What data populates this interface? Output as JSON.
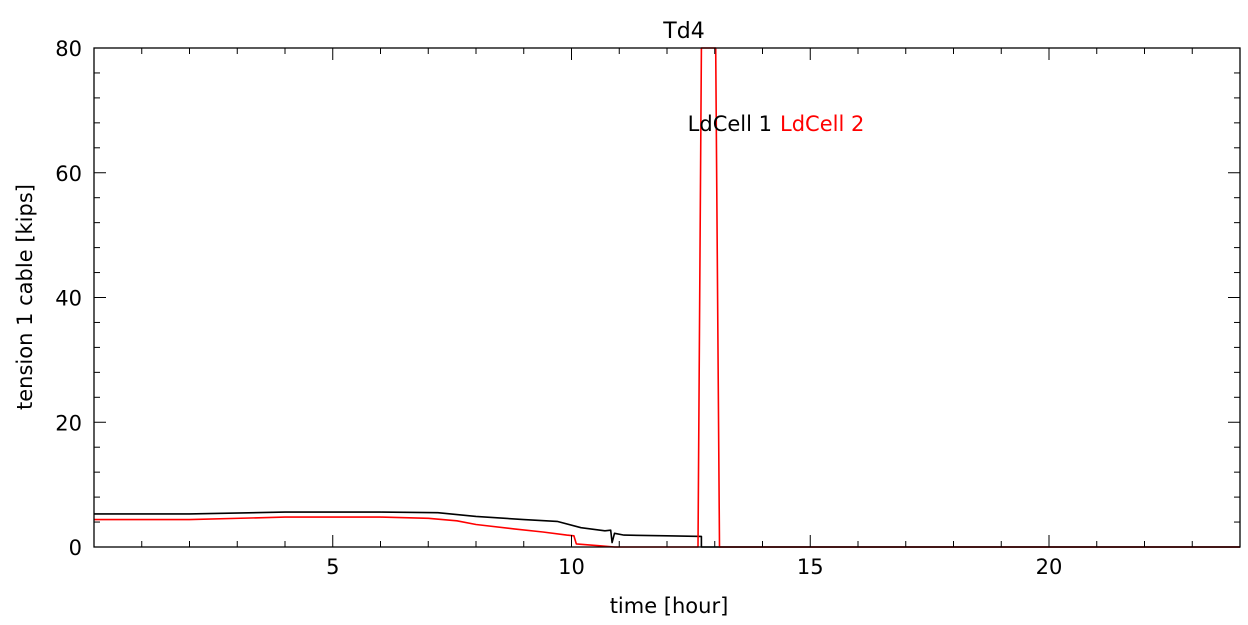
{
  "chart_data": {
    "type": "line",
    "title": "Td4",
    "xlabel": "time [hour]",
    "ylabel": "tension 1 cable [kips]",
    "xlim": [
      0,
      24
    ],
    "ylim": [
      0,
      80
    ],
    "xticks": [
      5,
      10,
      15,
      20
    ],
    "yticks": [
      0,
      20,
      40,
      60,
      80
    ],
    "grid": false,
    "legend": {
      "placement": "top-center"
    },
    "series": [
      {
        "name": "LdCell 1",
        "color": "#000000",
        "points": [
          [
            0,
            5.3
          ],
          [
            2,
            5.3
          ],
          [
            4,
            5.6
          ],
          [
            5,
            5.6
          ],
          [
            6,
            5.6
          ],
          [
            7.2,
            5.5
          ],
          [
            8,
            4.9
          ],
          [
            9,
            4.4
          ],
          [
            9.7,
            4.1
          ],
          [
            10.2,
            3.1
          ],
          [
            10.7,
            2.6
          ],
          [
            10.82,
            2.7
          ],
          [
            10.85,
            0.7
          ],
          [
            10.9,
            2.2
          ],
          [
            11.1,
            1.9
          ],
          [
            12,
            1.8
          ],
          [
            12.72,
            1.7
          ],
          [
            12.72,
            0
          ],
          [
            24,
            0
          ]
        ]
      },
      {
        "name": "LdCell 2",
        "color": "#ff0000",
        "points": [
          [
            0,
            4.4
          ],
          [
            2,
            4.4
          ],
          [
            4,
            4.8
          ],
          [
            5,
            4.8
          ],
          [
            6,
            4.8
          ],
          [
            7,
            4.6
          ],
          [
            7.6,
            4.2
          ],
          [
            8,
            3.6
          ],
          [
            8.8,
            2.9
          ],
          [
            9.4,
            2.4
          ],
          [
            9.9,
            1.9
          ],
          [
            10.05,
            1.8
          ],
          [
            10.1,
            0.5
          ],
          [
            10.6,
            0.2
          ],
          [
            10.9,
            0
          ],
          [
            12.65,
            0
          ],
          [
            12.72,
            80
          ],
          [
            13.02,
            80
          ],
          [
            13.1,
            0
          ],
          [
            24,
            0
          ]
        ]
      }
    ]
  }
}
